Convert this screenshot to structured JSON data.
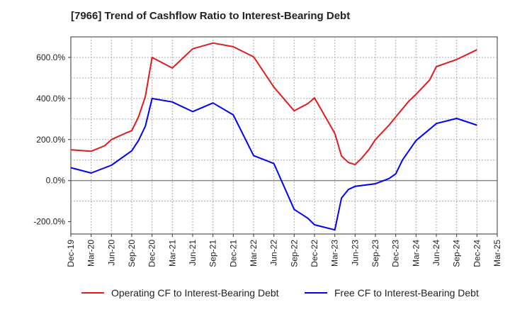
{
  "title": "[7966]  Trend of Cashflow Ratio to Interest-Bearing Debt",
  "chart_data": {
    "type": "line",
    "title": "[7966]  Trend of Cashflow Ratio to Interest-Bearing Debt",
    "xlabel": "",
    "ylabel": "",
    "ylim": [
      -260,
      700
    ],
    "y_ticks": [
      -200,
      0,
      200,
      400,
      600
    ],
    "y_tick_labels": [
      "-200.0%",
      "0.0%",
      "200.0%",
      "400.0%",
      "600.0%"
    ],
    "x_tick_labels": [
      "Dec-19",
      "Mar-20",
      "Jun-20",
      "Sep-20",
      "Dec-20",
      "Mar-21",
      "Jun-21",
      "Sep-21",
      "Dec-21",
      "Mar-22",
      "Jun-22",
      "Sep-22",
      "Dec-22",
      "Mar-23",
      "Jun-23",
      "Sep-23",
      "Dec-23",
      "Mar-24",
      "Jun-24",
      "Sep-24",
      "Dec-24",
      "Mar-25"
    ],
    "grid": true,
    "legend_position": "bottom",
    "series": [
      {
        "name": "Operating CF to Interest-Bearing Debt",
        "color": "#e31a1c",
        "points": [
          [
            0,
            150
          ],
          [
            1,
            143
          ],
          [
            1.67,
            170
          ],
          [
            2,
            200
          ],
          [
            2.67,
            230
          ],
          [
            3,
            243
          ],
          [
            3.33,
            310
          ],
          [
            3.67,
            410
          ],
          [
            4,
            600
          ],
          [
            5,
            548
          ],
          [
            6,
            642
          ],
          [
            7,
            670
          ],
          [
            8,
            652
          ],
          [
            9,
            603
          ],
          [
            10,
            455
          ],
          [
            11,
            340
          ],
          [
            11.67,
            375
          ],
          [
            12,
            403
          ],
          [
            13,
            230
          ],
          [
            13.33,
            120
          ],
          [
            13.67,
            88
          ],
          [
            14,
            78
          ],
          [
            14.33,
            110
          ],
          [
            14.67,
            150
          ],
          [
            15,
            200
          ],
          [
            15.67,
            270
          ],
          [
            16,
            310
          ],
          [
            16.67,
            390
          ],
          [
            17,
            420
          ],
          [
            17.67,
            490
          ],
          [
            18,
            555
          ],
          [
            19,
            590
          ],
          [
            20,
            637
          ]
        ]
      },
      {
        "name": "Free CF to Interest-Bearing Debt",
        "color": "#0000ff",
        "points": [
          [
            0,
            63
          ],
          [
            1,
            37
          ],
          [
            2,
            75
          ],
          [
            3,
            145
          ],
          [
            3.33,
            195
          ],
          [
            3.67,
            265
          ],
          [
            4,
            400
          ],
          [
            5,
            383
          ],
          [
            6,
            336
          ],
          [
            7,
            378
          ],
          [
            8,
            320
          ],
          [
            9,
            122
          ],
          [
            10,
            83
          ],
          [
            11,
            -140
          ],
          [
            11.67,
            -183
          ],
          [
            12,
            -215
          ],
          [
            13,
            -240
          ],
          [
            13.33,
            -85
          ],
          [
            13.67,
            -43
          ],
          [
            14,
            -28
          ],
          [
            15,
            -15
          ],
          [
            15.67,
            10
          ],
          [
            16,
            33
          ],
          [
            16.33,
            100
          ],
          [
            17,
            195
          ],
          [
            17.67,
            250
          ],
          [
            18,
            278
          ],
          [
            19,
            303
          ],
          [
            20,
            270
          ]
        ]
      }
    ]
  }
}
